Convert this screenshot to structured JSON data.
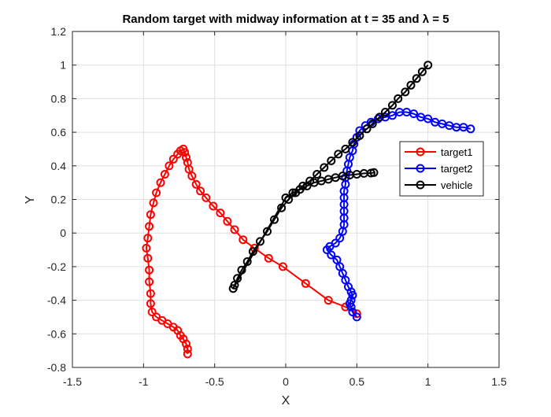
{
  "chart_data": {
    "type": "line",
    "title": "Random target with midway information at t = 35 and λ = 5",
    "xlabel": "X",
    "ylabel": "Y",
    "xlim": [
      -1.5,
      1.5
    ],
    "ylim": [
      -0.8,
      1.2
    ],
    "xticks": [
      -1.5,
      -1,
      -0.5,
      0,
      0.5,
      1,
      1.5
    ],
    "xtick_labels": [
      "-1.5",
      "-1",
      "-0.5",
      "0",
      "0.5",
      "1",
      "1.5"
    ],
    "yticks": [
      -0.8,
      -0.6,
      -0.4,
      -0.2,
      0,
      0.2,
      0.4,
      0.6,
      0.8,
      1,
      1.2
    ],
    "ytick_labels": [
      "-0.8",
      "-0.6",
      "-0.4",
      "-0.2",
      "0",
      "0.2",
      "0.4",
      "0.6",
      "0.8",
      "1",
      "1.2"
    ],
    "grid": true,
    "legend_position": "right-middle",
    "marker": "circle-open",
    "series": [
      {
        "name": "target1",
        "color": "#ff0000",
        "points": [
          [
            0.5,
            -0.48
          ],
          [
            0.42,
            -0.44
          ],
          [
            0.3,
            -0.4
          ],
          [
            0.14,
            -0.3
          ],
          [
            -0.02,
            -0.2
          ],
          [
            -0.12,
            -0.15
          ],
          [
            -0.22,
            -0.09
          ],
          [
            -0.3,
            -0.04
          ],
          [
            -0.36,
            0.02
          ],
          [
            -0.41,
            0.07
          ],
          [
            -0.46,
            0.12
          ],
          [
            -0.51,
            0.16
          ],
          [
            -0.56,
            0.21
          ],
          [
            -0.6,
            0.25
          ],
          [
            -0.63,
            0.29
          ],
          [
            -0.66,
            0.34
          ],
          [
            -0.68,
            0.38
          ],
          [
            -0.69,
            0.42
          ],
          [
            -0.7,
            0.45
          ],
          [
            -0.71,
            0.48
          ],
          [
            -0.72,
            0.5
          ],
          [
            -0.74,
            0.49
          ],
          [
            -0.76,
            0.47
          ],
          [
            -0.79,
            0.44
          ],
          [
            -0.82,
            0.4
          ],
          [
            -0.85,
            0.35
          ],
          [
            -0.88,
            0.3
          ],
          [
            -0.91,
            0.24
          ],
          [
            -0.93,
            0.18
          ],
          [
            -0.95,
            0.11
          ],
          [
            -0.96,
            0.04
          ],
          [
            -0.97,
            -0.03
          ],
          [
            -0.98,
            -0.09
          ],
          [
            -0.97,
            -0.15
          ],
          [
            -0.96,
            -0.22
          ],
          [
            -0.96,
            -0.29
          ],
          [
            -0.95,
            -0.36
          ],
          [
            -0.95,
            -0.42
          ],
          [
            -0.94,
            -0.47
          ],
          [
            -0.91,
            -0.5
          ],
          [
            -0.87,
            -0.52
          ],
          [
            -0.83,
            -0.54
          ],
          [
            -0.79,
            -0.56
          ],
          [
            -0.76,
            -0.58
          ],
          [
            -0.74,
            -0.61
          ],
          [
            -0.72,
            -0.63
          ],
          [
            -0.7,
            -0.66
          ],
          [
            -0.69,
            -0.69
          ],
          [
            -0.69,
            -0.72
          ]
        ]
      },
      {
        "name": "target2",
        "color": "#0000ff",
        "points": [
          [
            1.3,
            0.62
          ],
          [
            1.25,
            0.63
          ],
          [
            1.2,
            0.63
          ],
          [
            1.15,
            0.64
          ],
          [
            1.1,
            0.65
          ],
          [
            1.05,
            0.66
          ],
          [
            1.0,
            0.68
          ],
          [
            0.95,
            0.69
          ],
          [
            0.9,
            0.71
          ],
          [
            0.85,
            0.72
          ],
          [
            0.8,
            0.72
          ],
          [
            0.75,
            0.7
          ],
          [
            0.7,
            0.69
          ],
          [
            0.65,
            0.68
          ],
          [
            0.6,
            0.66
          ],
          [
            0.56,
            0.64
          ],
          [
            0.52,
            0.61
          ],
          [
            0.5,
            0.57
          ],
          [
            0.48,
            0.53
          ],
          [
            0.47,
            0.49
          ],
          [
            0.45,
            0.45
          ],
          [
            0.44,
            0.41
          ],
          [
            0.43,
            0.37
          ],
          [
            0.42,
            0.33
          ],
          [
            0.42,
            0.29
          ],
          [
            0.41,
            0.25
          ],
          [
            0.41,
            0.21
          ],
          [
            0.41,
            0.17
          ],
          [
            0.41,
            0.13
          ],
          [
            0.41,
            0.09
          ],
          [
            0.41,
            0.05
          ],
          [
            0.4,
            0.01
          ],
          [
            0.38,
            -0.03
          ],
          [
            0.35,
            -0.06
          ],
          [
            0.31,
            -0.08
          ],
          [
            0.29,
            -0.1
          ],
          [
            0.32,
            -0.13
          ],
          [
            0.36,
            -0.16
          ],
          [
            0.38,
            -0.2
          ],
          [
            0.4,
            -0.24
          ],
          [
            0.42,
            -0.28
          ],
          [
            0.44,
            -0.32
          ],
          [
            0.46,
            -0.35
          ],
          [
            0.47,
            -0.37
          ],
          [
            0.46,
            -0.4
          ],
          [
            0.45,
            -0.42
          ],
          [
            0.46,
            -0.44
          ],
          [
            0.47,
            -0.47
          ],
          [
            0.5,
            -0.5
          ]
        ]
      },
      {
        "name": "vehicle",
        "color": "#000000",
        "points": [
          [
            1.0,
            1.0
          ],
          [
            0.96,
            0.96
          ],
          [
            0.92,
            0.92
          ],
          [
            0.88,
            0.88
          ],
          [
            0.84,
            0.84
          ],
          [
            0.79,
            0.8
          ],
          [
            0.75,
            0.76
          ],
          [
            0.7,
            0.72
          ],
          [
            0.66,
            0.69
          ],
          [
            0.61,
            0.65
          ],
          [
            0.57,
            0.62
          ],
          [
            0.52,
            0.58
          ],
          [
            0.47,
            0.54
          ],
          [
            0.42,
            0.5
          ],
          [
            0.37,
            0.47
          ],
          [
            0.32,
            0.43
          ],
          [
            0.27,
            0.39
          ],
          [
            0.22,
            0.35
          ],
          [
            0.17,
            0.31
          ],
          [
            0.12,
            0.28
          ],
          [
            0.07,
            0.24
          ],
          [
            0.02,
            0.2
          ],
          [
            -0.03,
            0.15
          ],
          [
            -0.08,
            0.08
          ],
          [
            -0.13,
            0.01
          ],
          [
            -0.18,
            -0.05
          ],
          [
            -0.23,
            -0.11
          ],
          [
            -0.27,
            -0.17
          ],
          [
            -0.31,
            -0.22
          ],
          [
            -0.34,
            -0.27
          ],
          [
            -0.36,
            -0.31
          ],
          [
            -0.37,
            -0.33
          ],
          [
            0.0,
            0.21
          ],
          [
            0.05,
            0.24
          ],
          [
            0.1,
            0.26
          ],
          [
            0.15,
            0.28
          ],
          [
            0.2,
            0.3
          ],
          [
            0.25,
            0.31
          ],
          [
            0.3,
            0.32
          ],
          [
            0.35,
            0.33
          ],
          [
            0.4,
            0.34
          ],
          [
            0.45,
            0.345
          ],
          [
            0.5,
            0.35
          ],
          [
            0.55,
            0.355
          ],
          [
            0.6,
            0.357
          ],
          [
            0.62,
            0.36
          ]
        ]
      }
    ]
  }
}
